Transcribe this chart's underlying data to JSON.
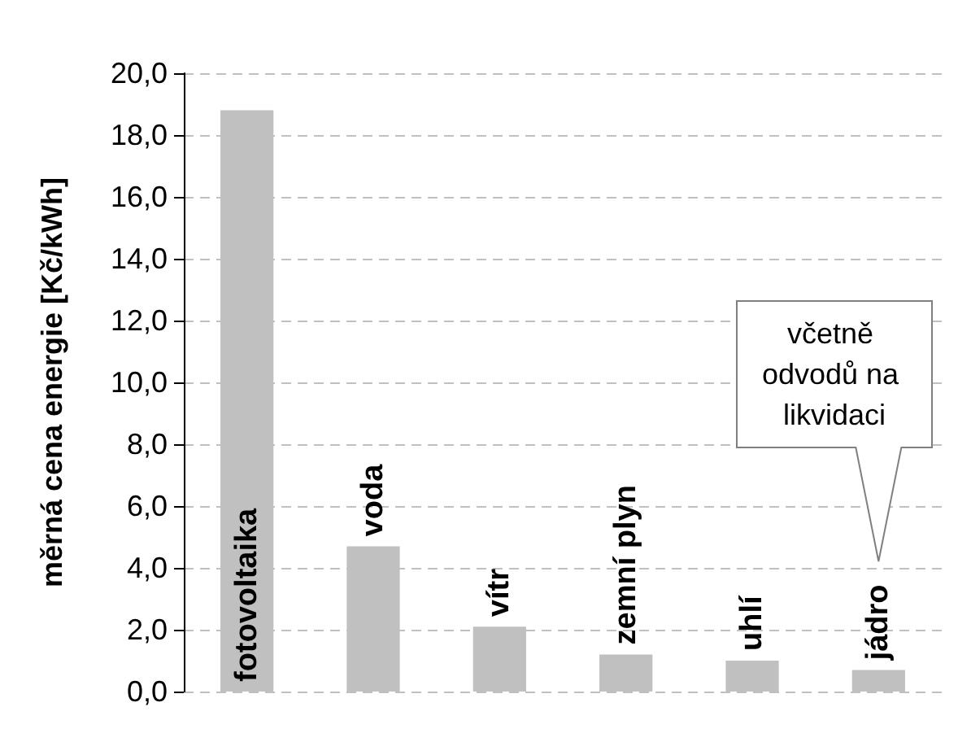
{
  "chart_data": {
    "type": "bar",
    "ylabel": "měrná cena energie [Kč/kWh]",
    "categories": [
      "fotovoltaika",
      "voda",
      "vítr",
      "zemní plyn",
      "uhlí",
      "jádro"
    ],
    "values": [
      18.8,
      4.7,
      2.1,
      1.2,
      1.0,
      0.7
    ],
    "color": "#c0c0c0",
    "ylim": [
      0,
      20
    ],
    "yticks": [
      {
        "value": 0,
        "label": "0,0"
      },
      {
        "value": 2,
        "label": "2,0"
      },
      {
        "value": 4,
        "label": "4,0"
      },
      {
        "value": 6,
        "label": "6,0"
      },
      {
        "value": 8,
        "label": "8,0"
      },
      {
        "value": 10,
        "label": "10,0"
      },
      {
        "value": 12,
        "label": "12,0"
      },
      {
        "value": 14,
        "label": "14,0"
      },
      {
        "value": 16,
        "label": "16,0"
      },
      {
        "value": 18,
        "label": "18,0"
      },
      {
        "value": 20,
        "label": "20,0"
      }
    ],
    "grid": "y",
    "annotations": [
      "včetně odvodů na likvidaci"
    ]
  }
}
